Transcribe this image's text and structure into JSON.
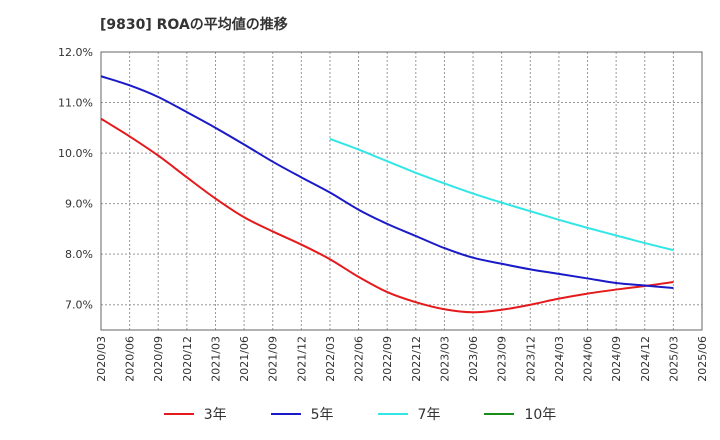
{
  "title": "[9830]  ROAの平均値の推移",
  "chart_data": {
    "type": "line",
    "title": "[9830]  ROAの平均値の推移",
    "xlabel": "",
    "ylabel": "",
    "ylim": [
      6.5,
      12.0
    ],
    "y_ticks": [
      "7.0%",
      "8.0%",
      "9.0%",
      "10.0%",
      "11.0%",
      "12.0%"
    ],
    "y_tick_values": [
      7.0,
      8.0,
      9.0,
      10.0,
      11.0,
      12.0
    ],
    "grid": true,
    "legend_position": "bottom",
    "x": [
      "2020/03",
      "2020/06",
      "2020/09",
      "2020/12",
      "2021/03",
      "2021/06",
      "2021/09",
      "2021/12",
      "2022/03",
      "2022/06",
      "2022/09",
      "2022/12",
      "2023/03",
      "2023/06",
      "2023/09",
      "2023/12",
      "2024/03",
      "2024/06",
      "2024/09",
      "2024/12",
      "2025/03",
      "2025/06"
    ],
    "series": [
      {
        "name": "3年",
        "color": "#e41a1c",
        "values": [
          10.68,
          10.33,
          9.95,
          9.52,
          9.1,
          8.73,
          8.45,
          8.19,
          7.9,
          7.55,
          7.25,
          7.05,
          6.91,
          6.85,
          6.9,
          7.0,
          7.12,
          7.22,
          7.3,
          7.37,
          7.45,
          null
        ]
      },
      {
        "name": "5年",
        "color": "#1a1ac8",
        "values": [
          11.52,
          11.34,
          11.11,
          10.81,
          10.5,
          10.17,
          9.83,
          9.52,
          9.22,
          8.88,
          8.6,
          8.36,
          8.12,
          7.93,
          7.81,
          7.7,
          7.61,
          7.52,
          7.43,
          7.38,
          7.33,
          null
        ]
      },
      {
        "name": "7年",
        "color": "#33e6e6",
        "values": [
          null,
          null,
          null,
          null,
          null,
          null,
          null,
          null,
          10.28,
          10.07,
          9.84,
          9.61,
          9.4,
          9.2,
          9.02,
          8.85,
          8.68,
          8.52,
          8.37,
          8.22,
          8.08,
          null
        ]
      },
      {
        "name": "10年",
        "color": "#1a8c1a",
        "values": [
          null,
          null,
          null,
          null,
          null,
          null,
          null,
          null,
          null,
          null,
          null,
          null,
          null,
          null,
          null,
          null,
          null,
          null,
          null,
          null,
          null,
          null
        ]
      }
    ]
  }
}
